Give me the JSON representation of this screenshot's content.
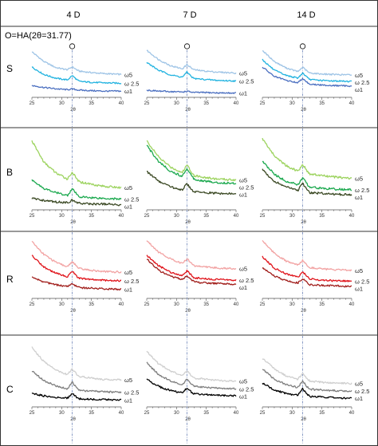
{
  "columns": [
    "4 D",
    "7 D",
    "14 D"
  ],
  "rows": [
    "S",
    "B",
    "R",
    "C"
  ],
  "marker_label": "O=HA(2θ=31.77)",
  "marker_symbol": "O",
  "chart_data": {
    "type": "line",
    "layout": "grid 4 rows × 3 columns of XRD patterns",
    "xlabel": "2θ",
    "xlim": [
      25,
      40
    ],
    "xticks": [
      25,
      30,
      35,
      40
    ],
    "reference_line_x": 31.77,
    "reference_line_style": "dash-dot, blue-gray",
    "y_axis": "intensity, unlabeled",
    "series_names": [
      "ω5",
      "ω 2.5",
      "ω1"
    ],
    "row_colors": {
      "S": [
        "#9ec4e6",
        "#22b3e0",
        "#4b6fc0"
      ],
      "B": [
        "#9cd35e",
        "#1ca94f",
        "#3c4a25"
      ],
      "R": [
        "#f2a3a3",
        "#e0151c",
        "#a11f1c"
      ],
      "C": [
        "#cfcfcf",
        "#7f7f7f",
        "#000000"
      ]
    },
    "panels": [
      {
        "row": "S",
        "col": "4 D",
        "series": [
          {
            "name": "ω5",
            "x": [
              25,
              27,
              29,
              31,
              31.77,
              33,
              35,
              37,
              40
            ],
            "y": [
              0.95,
              0.74,
              0.61,
              0.56,
              0.6,
              0.53,
              0.5,
              0.48,
              0.46
            ]
          },
          {
            "name": "ω 2.5",
            "x": [
              25,
              27,
              29,
              31,
              31.77,
              33,
              35,
              37,
              40
            ],
            "y": [
              0.62,
              0.46,
              0.38,
              0.34,
              0.4,
              0.31,
              0.29,
              0.28,
              0.27
            ]
          },
          {
            "name": "ω1",
            "x": [
              25,
              27,
              29,
              31,
              31.77,
              33,
              35,
              37,
              40
            ],
            "y": [
              0.22,
              0.18,
              0.15,
              0.13,
              0.14,
              0.12,
              0.11,
              0.1,
              0.1
            ]
          }
        ]
      },
      {
        "row": "S",
        "col": "7 D",
        "series": [
          {
            "name": "ω5",
            "x": [
              25,
              27,
              29,
              31,
              31.77,
              33,
              35,
              37,
              40
            ],
            "y": [
              0.98,
              0.78,
              0.65,
              0.58,
              0.64,
              0.56,
              0.53,
              0.51,
              0.49
            ]
          },
          {
            "name": "ω 2.5",
            "x": [
              25,
              27,
              29,
              31,
              31.77,
              33,
              35,
              37,
              40
            ],
            "y": [
              0.72,
              0.55,
              0.45,
              0.4,
              0.47,
              0.37,
              0.35,
              0.33,
              0.32
            ]
          },
          {
            "name": "ω1",
            "x": [
              25,
              27,
              29,
              31,
              31.77,
              33,
              35,
              37,
              40
            ],
            "y": [
              0.12,
              0.1,
              0.09,
              0.08,
              0.09,
              0.07,
              0.07,
              0.06,
              0.06
            ]
          }
        ]
      },
      {
        "row": "S",
        "col": "14 D",
        "series": [
          {
            "name": "ω5",
            "x": [
              25,
              27,
              29,
              31,
              31.77,
              33,
              35,
              37,
              40
            ],
            "y": [
              0.98,
              0.74,
              0.6,
              0.52,
              0.58,
              0.49,
              0.47,
              0.46,
              0.45
            ]
          },
          {
            "name": "ω 2.5",
            "x": [
              25,
              27,
              29,
              31,
              31.77,
              33,
              35,
              37,
              40
            ],
            "y": [
              0.78,
              0.55,
              0.44,
              0.38,
              0.45,
              0.35,
              0.33,
              0.32,
              0.31
            ]
          },
          {
            "name": "ω1",
            "x": [
              25,
              27,
              29,
              31,
              31.77,
              33,
              35,
              37,
              40
            ],
            "y": [
              0.62,
              0.42,
              0.33,
              0.28,
              0.34,
              0.25,
              0.23,
              0.22,
              0.21
            ]
          }
        ]
      },
      {
        "row": "B",
        "col": "4 D",
        "series": [
          {
            "name": "ω5",
            "x": [
              25,
              27,
              29,
              31,
              31.77,
              33,
              35,
              37,
              40
            ],
            "y": [
              0.95,
              0.65,
              0.5,
              0.41,
              0.47,
              0.37,
              0.34,
              0.31,
              0.29
            ]
          },
          {
            "name": "ω 2.5",
            "x": [
              25,
              27,
              29,
              31,
              31.77,
              33,
              35,
              37,
              40
            ],
            "y": [
              0.4,
              0.28,
              0.22,
              0.18,
              0.24,
              0.16,
              0.15,
              0.14,
              0.13
            ]
          },
          {
            "name": "ω1",
            "x": [
              25,
              27,
              29,
              31,
              31.77,
              33,
              35,
              37,
              40
            ],
            "y": [
              0.14,
              0.11,
              0.09,
              0.08,
              0.1,
              0.07,
              0.06,
              0.06,
              0.05
            ]
          }
        ]
      },
      {
        "row": "B",
        "col": "7 D",
        "series": [
          {
            "name": "ω5",
            "x": [
              25,
              27,
              29,
              31,
              31.77,
              33,
              35,
              37,
              40
            ],
            "y": [
              0.95,
              0.72,
              0.58,
              0.5,
              0.57,
              0.46,
              0.43,
              0.41,
              0.4
            ]
          },
          {
            "name": "ω 2.5",
            "x": [
              25,
              27,
              29,
              31,
              31.77,
              33,
              35,
              37,
              40
            ],
            "y": [
              0.88,
              0.66,
              0.52,
              0.45,
              0.52,
              0.41,
              0.38,
              0.36,
              0.35
            ]
          },
          {
            "name": "ω1",
            "x": [
              25,
              27,
              29,
              31,
              31.77,
              33,
              35,
              37,
              40
            ],
            "y": [
              0.52,
              0.38,
              0.3,
              0.26,
              0.31,
              0.23,
              0.22,
              0.21,
              0.2
            ]
          }
        ]
      },
      {
        "row": "B",
        "col": "14 D",
        "series": [
          {
            "name": "ω5",
            "x": [
              25,
              27,
              29,
              31,
              31.77,
              33,
              35,
              37,
              40
            ],
            "y": [
              0.98,
              0.74,
              0.6,
              0.52,
              0.58,
              0.48,
              0.46,
              0.44,
              0.42
            ]
          },
          {
            "name": "ω 2.5",
            "x": [
              25,
              27,
              29,
              31,
              31.77,
              33,
              35,
              37,
              40
            ],
            "y": [
              0.66,
              0.48,
              0.38,
              0.33,
              0.39,
              0.3,
              0.28,
              0.27,
              0.26
            ]
          },
          {
            "name": "ω1",
            "x": [
              25,
              27,
              29,
              31,
              31.77,
              33,
              35,
              37,
              40
            ],
            "y": [
              0.54,
              0.38,
              0.3,
              0.25,
              0.31,
              0.22,
              0.21,
              0.2,
              0.19
            ]
          }
        ]
      },
      {
        "row": "R",
        "col": "4 D",
        "series": [
          {
            "name": "ω5",
            "x": [
              25,
              27,
              29,
              31,
              31.77,
              33,
              35,
              37,
              40
            ],
            "y": [
              0.96,
              0.74,
              0.6,
              0.52,
              0.58,
              0.49,
              0.46,
              0.44,
              0.43
            ]
          },
          {
            "name": "ω 2.5",
            "x": [
              25,
              27,
              29,
              31,
              31.77,
              33,
              35,
              37,
              40
            ],
            "y": [
              0.72,
              0.52,
              0.41,
              0.35,
              0.41,
              0.32,
              0.3,
              0.29,
              0.28
            ]
          },
          {
            "name": "ω1",
            "x": [
              25,
              27,
              29,
              31,
              31.77,
              33,
              35,
              37,
              40
            ],
            "y": [
              0.34,
              0.26,
              0.21,
              0.18,
              0.21,
              0.16,
              0.15,
              0.14,
              0.13
            ]
          }
        ]
      },
      {
        "row": "R",
        "col": "7 D",
        "series": [
          {
            "name": "ω5",
            "x": [
              25,
              27,
              29,
              31,
              31.77,
              33,
              35,
              37,
              40
            ],
            "y": [
              0.98,
              0.78,
              0.66,
              0.58,
              0.63,
              0.54,
              0.52,
              0.5,
              0.49
            ]
          },
          {
            "name": "ω 2.5",
            "x": [
              25,
              27,
              29,
              31,
              31.77,
              33,
              35,
              37,
              40
            ],
            "y": [
              0.72,
              0.54,
              0.43,
              0.37,
              0.42,
              0.33,
              0.31,
              0.3,
              0.29
            ]
          },
          {
            "name": "ω1",
            "x": [
              25,
              27,
              29,
              31,
              31.77,
              33,
              35,
              37,
              40
            ],
            "y": [
              0.66,
              0.46,
              0.36,
              0.3,
              0.34,
              0.26,
              0.24,
              0.23,
              0.22
            ]
          }
        ]
      },
      {
        "row": "R",
        "col": "14 D",
        "series": [
          {
            "name": "ω5",
            "x": [
              25,
              27,
              29,
              31,
              31.77,
              33,
              35,
              37,
              40
            ],
            "y": [
              0.98,
              0.76,
              0.62,
              0.55,
              0.6,
              0.51,
              0.49,
              0.47,
              0.46
            ]
          },
          {
            "name": "ω 2.5",
            "x": [
              25,
              27,
              29,
              31,
              31.77,
              33,
              35,
              37,
              40
            ],
            "y": [
              0.7,
              0.5,
              0.4,
              0.34,
              0.4,
              0.31,
              0.29,
              0.28,
              0.27
            ]
          },
          {
            "name": "ω1",
            "x": [
              25,
              27,
              29,
              31,
              31.77,
              33,
              35,
              37,
              40
            ],
            "y": [
              0.5,
              0.36,
              0.28,
              0.24,
              0.29,
              0.21,
              0.2,
              0.19,
              0.18
            ]
          }
        ]
      },
      {
        "row": "C",
        "col": "4 D",
        "series": [
          {
            "name": "ω5",
            "x": [
              25,
              27,
              29,
              31,
              31.77,
              33,
              35,
              37,
              40
            ],
            "y": [
              0.98,
              0.74,
              0.6,
              0.52,
              0.58,
              0.49,
              0.46,
              0.44,
              0.43
            ]
          },
          {
            "name": "ω 2.5",
            "x": [
              25,
              27,
              29,
              31,
              31.77,
              33,
              35,
              37,
              40
            ],
            "y": [
              0.58,
              0.42,
              0.33,
              0.28,
              0.35,
              0.25,
              0.24,
              0.23,
              0.22
            ]
          },
          {
            "name": "ω1",
            "x": [
              25,
              27,
              29,
              31,
              31.77,
              33,
              35,
              37,
              40
            ],
            "y": [
              0.2,
              0.16,
              0.13,
              0.12,
              0.17,
              0.11,
              0.1,
              0.1,
              0.09
            ]
          }
        ]
      },
      {
        "row": "C",
        "col": "7 D",
        "series": [
          {
            "name": "ω5",
            "x": [
              25,
              27,
              29,
              31,
              31.77,
              33,
              35,
              37,
              40
            ],
            "y": [
              0.92,
              0.7,
              0.58,
              0.5,
              0.55,
              0.46,
              0.44,
              0.42,
              0.41
            ]
          },
          {
            "name": "ω 2.5",
            "x": [
              25,
              27,
              29,
              31,
              31.77,
              33,
              35,
              37,
              40
            ],
            "y": [
              0.72,
              0.52,
              0.41,
              0.35,
              0.41,
              0.32,
              0.3,
              0.29,
              0.28
            ]
          },
          {
            "name": "ω1",
            "x": [
              25,
              27,
              29,
              31,
              31.77,
              33,
              35,
              37,
              40
            ],
            "y": [
              0.44,
              0.32,
              0.25,
              0.21,
              0.26,
              0.19,
              0.18,
              0.17,
              0.16
            ]
          }
        ]
      },
      {
        "row": "C",
        "col": "14 D",
        "series": [
          {
            "name": "ω5",
            "x": [
              25,
              27,
              29,
              31,
              31.77,
              33,
              35,
              37,
              40
            ],
            "y": [
              0.8,
              0.62,
              0.5,
              0.44,
              0.5,
              0.41,
              0.39,
              0.38,
              0.37
            ]
          },
          {
            "name": "ω 2.5",
            "x": [
              25,
              27,
              29,
              31,
              31.77,
              33,
              35,
              37,
              40
            ],
            "y": [
              0.62,
              0.44,
              0.35,
              0.3,
              0.37,
              0.27,
              0.26,
              0.25,
              0.24
            ]
          },
          {
            "name": "ω1",
            "x": [
              25,
              27,
              29,
              31,
              31.77,
              33,
              35,
              37,
              40
            ],
            "y": [
              0.38,
              0.26,
              0.2,
              0.17,
              0.24,
              0.15,
              0.14,
              0.13,
              0.12
            ]
          }
        ]
      }
    ]
  }
}
